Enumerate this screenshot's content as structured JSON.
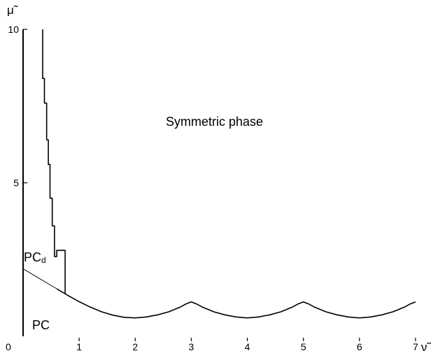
{
  "chart_data": {
    "type": "line",
    "xlabel": "ν̃",
    "ylabel": "μ̃",
    "xlim": [
      0,
      7
    ],
    "ylim": [
      0,
      10
    ],
    "x_ticks": [
      "0",
      "1",
      "2",
      "3",
      "4",
      "5",
      "6",
      "7"
    ],
    "y_ticks": [
      "5",
      "10"
    ],
    "y_tick_values": [
      5,
      10
    ],
    "grid": false,
    "region_labels": {
      "symmetric": "Symmetric phase",
      "pc": "PC",
      "pcd_main": "PC",
      "pcd_sub": "d"
    },
    "series": [
      {
        "role": "lower-boundary",
        "x": [
          0.6,
          0.8,
          1.0,
          1.2,
          1.4,
          1.6,
          1.8,
          2.0,
          2.2,
          2.4,
          2.6,
          2.8,
          2.9,
          3.0,
          3.1,
          3.2,
          3.4,
          3.6,
          3.8,
          4.0,
          4.2,
          4.4,
          4.6,
          4.8,
          4.9,
          5.0,
          5.1,
          5.2,
          5.4,
          5.6,
          5.8,
          6.0,
          6.2,
          6.4,
          6.6,
          6.8,
          6.9,
          7.0
        ],
        "y": [
          1.55,
          1.33,
          1.13,
          0.95,
          0.8,
          0.69,
          0.62,
          0.6,
          0.63,
          0.7,
          0.8,
          0.95,
          1.05,
          1.12,
          1.05,
          0.95,
          0.8,
          0.7,
          0.63,
          0.6,
          0.63,
          0.7,
          0.8,
          0.95,
          1.05,
          1.12,
          1.05,
          0.95,
          0.8,
          0.7,
          0.63,
          0.6,
          0.63,
          0.7,
          0.8,
          0.95,
          1.05,
          1.12
        ]
      },
      {
        "role": "pc-pcd-boundary",
        "x": [
          0.0,
          0.6
        ],
        "y": [
          2.2,
          1.55
        ]
      },
      {
        "role": "pcd-upper-boundary",
        "x": [
          0.35,
          0.35,
          0.38,
          0.38,
          0.42,
          0.42,
          0.45,
          0.45,
          0.48,
          0.48,
          0.52,
          0.52,
          0.56,
          0.56,
          0.6,
          0.6,
          0.75,
          0.75
        ],
        "y": [
          10.0,
          8.4,
          8.4,
          7.6,
          7.6,
          6.4,
          6.4,
          5.6,
          5.6,
          4.5,
          4.5,
          3.6,
          3.6,
          2.6,
          2.6,
          2.8,
          2.8,
          1.4
        ]
      }
    ]
  }
}
